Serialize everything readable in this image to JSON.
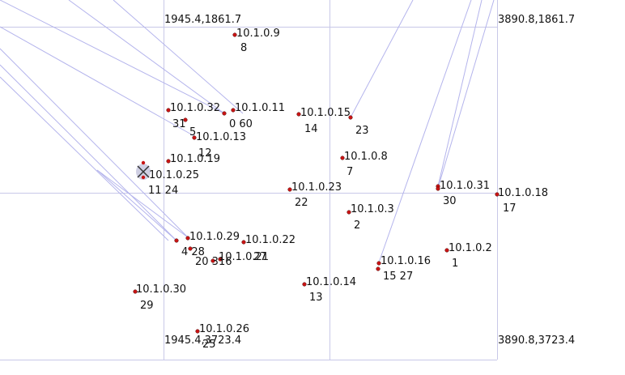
{
  "corners": {
    "top_left": "1945.4,1861.7",
    "top_right": "3890.8,1861.7",
    "bottom_left": "1945.4,3723.4",
    "bottom_right": "3890.8,3723.4"
  },
  "colors": {
    "grid": "#c8c8e8",
    "link": "#b4b4ec",
    "node": "#c81414",
    "node_outline": "#500000",
    "text": "#111111"
  },
  "nodes": [
    {
      "ip": "10.1.0.9",
      "id": "8"
    },
    {
      "ip": "10.1.0.32",
      "id": "31"
    },
    {
      "ip": "10.1.0.11",
      "id": "0 60"
    },
    {
      "ip": "",
      "id": "5"
    },
    {
      "ip": "10.1.0.13",
      "id": "12"
    },
    {
      "ip": "10.1.0.15",
      "id": "14"
    },
    {
      "ip": "",
      "id": "23"
    },
    {
      "ip": "10.1.0.19",
      "id": ""
    },
    {
      "ip": "10.1.0.25",
      "id": "11 24"
    },
    {
      "ip": "10.1.0.8",
      "id": "7"
    },
    {
      "ip": "10.1.0.23",
      "id": "22"
    },
    {
      "ip": "10.1.0.31",
      "id": "30"
    },
    {
      "ip": "10.1.0.18",
      "id": "17"
    },
    {
      "ip": "10.1.0.3",
      "id": "2"
    },
    {
      "ip": "10.1.0.29",
      "id": "4 28"
    },
    {
      "ip": "10.1.0.22",
      "id": ""
    },
    {
      "ip": "10.1.0.21",
      "id": "20 316"
    },
    {
      "ip": "",
      "id": "27"
    },
    {
      "ip": "10.1.0.2",
      "id": "1"
    },
    {
      "ip": "10.1.0.16",
      "id": "15 27"
    },
    {
      "ip": "10.1.0.14",
      "id": "13"
    },
    {
      "ip": "10.1.0.30",
      "id": "29"
    },
    {
      "ip": "10.1.0.26",
      "id": "25"
    }
  ]
}
